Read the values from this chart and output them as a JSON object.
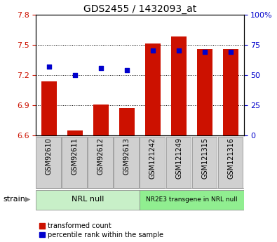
{
  "title": "GDS2455 / 1432093_at",
  "samples": [
    "GSM92610",
    "GSM92611",
    "GSM92612",
    "GSM92613",
    "GSM121242",
    "GSM121249",
    "GSM121315",
    "GSM121316"
  ],
  "red_values": [
    7.14,
    6.65,
    6.91,
    6.87,
    7.51,
    7.58,
    7.46,
    7.46
  ],
  "blue_values": [
    57,
    50,
    56,
    54,
    70,
    70,
    69,
    69
  ],
  "ylim_left": [
    6.6,
    7.8
  ],
  "ylim_right": [
    0,
    100
  ],
  "yticks_left": [
    6.6,
    6.9,
    7.2,
    7.5,
    7.8
  ],
  "yticks_right": [
    0,
    25,
    50,
    75,
    100
  ],
  "ytick_labels_right": [
    "0",
    "25",
    "50",
    "75",
    "100%"
  ],
  "group1_label": "NRL null",
  "group2_label": "NR2E3 transgene in NRL null",
  "group1_indices": [
    0,
    1,
    2,
    3
  ],
  "group2_indices": [
    4,
    5,
    6,
    7
  ],
  "group1_color": "#c8f0c8",
  "group2_color": "#90ee90",
  "bar_color": "#cc1100",
  "dot_color": "#0000cc",
  "bar_width": 0.6,
  "dot_size": 15,
  "legend_red": "transformed count",
  "legend_blue": "percentile rank within the sample",
  "strain_label": "strain",
  "bg_color": "#ffffff",
  "plot_bg": "#ffffff",
  "tick_color_left": "#cc1100",
  "tick_color_right": "#0000cc",
  "baseline": 6.6,
  "xticklabel_bg": "#d0d0d0",
  "spine_color": "#888888",
  "label_fontsize": 7,
  "tick_fontsize": 8
}
